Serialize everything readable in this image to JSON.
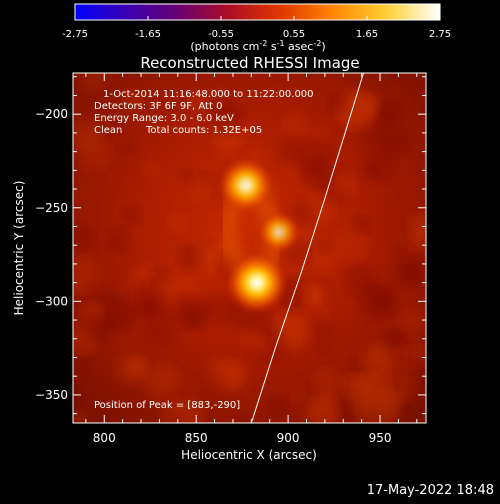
{
  "colorbar": {
    "tick_labels": [
      "-2.75",
      "-1.65",
      "-0.55",
      "0.55",
      "1.65",
      "2.75"
    ],
    "range": [
      -2.75,
      2.75
    ],
    "units_prefix": "(photons cm",
    "units_exp1": "-2",
    "units_mid": " s",
    "units_exp2": "-1",
    "units_mid2": " asec",
    "units_exp3": "-2",
    "units_suffix": ")",
    "colormap": [
      "#0000ff",
      "#3a00b0",
      "#6a0070",
      "#b01020",
      "#e23a00",
      "#ff8a00",
      "#ffd23a",
      "#ffffff"
    ]
  },
  "chart_data": {
    "type": "heatmap",
    "title": "Reconstructed RHESSI Image",
    "xlabel": "Heliocentric X (arcsec)",
    "ylabel": "Heliocentric Y (arcsec)",
    "xlim": [
      783,
      975
    ],
    "ylim": [
      -365,
      -178
    ],
    "xticks": [
      800,
      850,
      900,
      950
    ],
    "yticks": [
      -200,
      -250,
      -300,
      -350
    ],
    "sources": [
      {
        "x": 883,
        "y": -290,
        "intensity": 1.0
      },
      {
        "x": 877,
        "y": -238,
        "intensity": 0.82
      },
      {
        "x": 895,
        "y": -263,
        "intensity": 0.45
      }
    ],
    "limb_curve": [
      [
        941,
        -178
      ],
      [
        931,
        -210
      ],
      [
        920,
        -245
      ],
      [
        907,
        -285
      ],
      [
        893,
        -325
      ],
      [
        880,
        -365
      ]
    ],
    "info_lines": [
      "1-Oct-2014 11:16:48.000 to 11:22:00.000",
      "Detectors: 3F 6F 9F, Att 0",
      "Energy Range: 3.0 - 6.0 keV",
      "Clean",
      "Total counts: 1.32E+05"
    ],
    "peak_label": "Position of Peak = [883,-290]"
  },
  "footer": {
    "timestamp": "17-May-2022 18:48"
  }
}
